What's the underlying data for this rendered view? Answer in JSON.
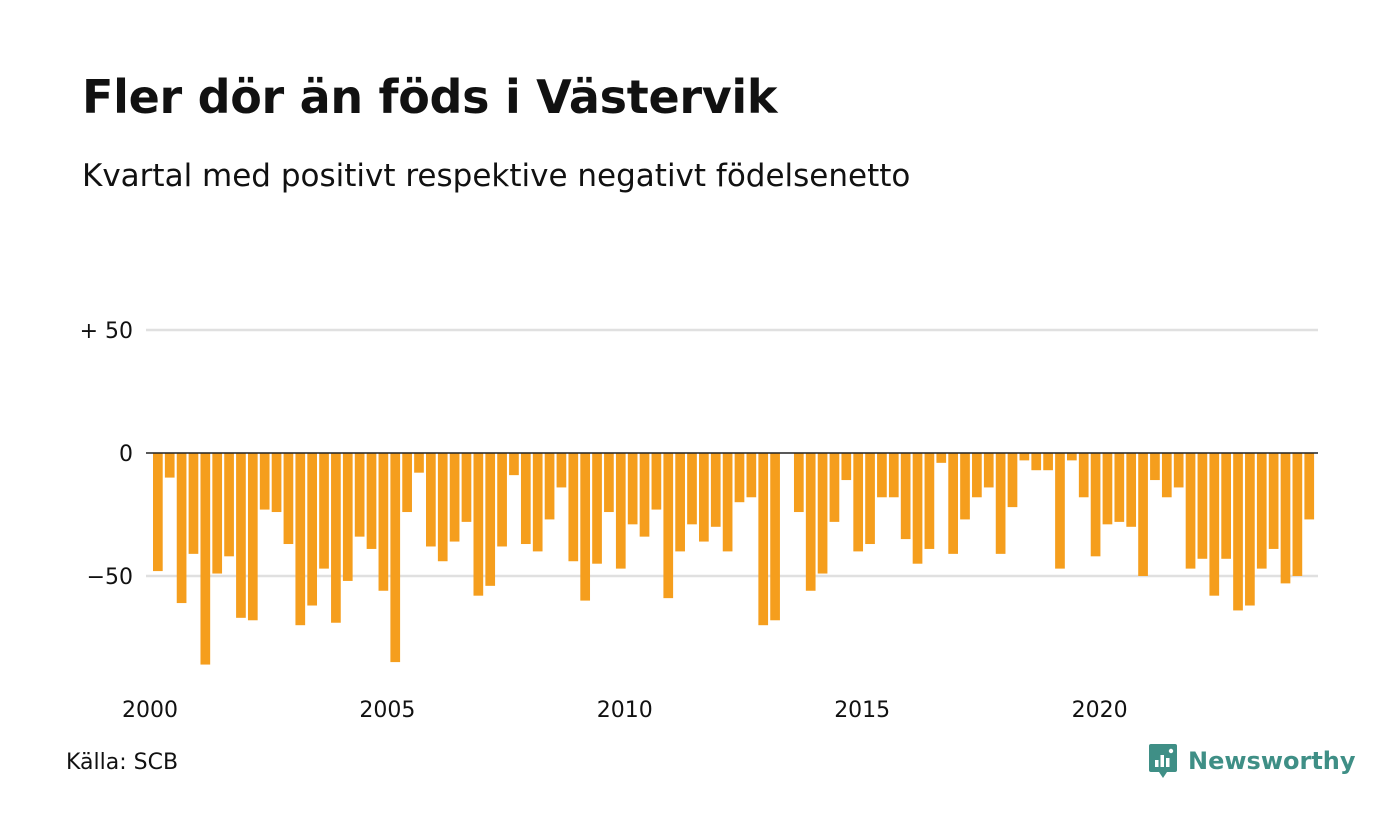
{
  "title": "Fler dör än föds i Västervik",
  "subtitle": "Kvartal med positivt respektive negativt födelsenetto",
  "source": "Källa: SCB",
  "brand": {
    "name": "Newsworthy",
    "icon": "newsworthy-logo-icon",
    "color": "#3f8f86"
  },
  "colors": {
    "bar": "#f59e1d",
    "grid": "#e0e0e0",
    "zero_line": "#222222"
  },
  "chart_data": {
    "type": "bar",
    "x_start": "2000 Q1",
    "y_ticks": [
      {
        "value": 50,
        "label": "+ 50"
      },
      {
        "value": 0,
        "label": "0"
      },
      {
        "value": -50,
        "label": "−50"
      }
    ],
    "x_ticks": [
      "2000",
      "2005",
      "2010",
      "2015",
      "2020"
    ],
    "ylim": [
      -90,
      50
    ],
    "values": [
      -48,
      -10,
      -61,
      -41,
      -86,
      -49,
      -42,
      -67,
      -68,
      -23,
      -24,
      -37,
      -70,
      -62,
      -47,
      -69,
      -52,
      -34,
      -39,
      -56,
      -85,
      -24,
      -8,
      -38,
      -44,
      -36,
      -28,
      -58,
      -54,
      -38,
      -9,
      -37,
      -40,
      -27,
      -14,
      -44,
      -60,
      -45,
      -24,
      -47,
      -29,
      -34,
      -23,
      -59,
      -40,
      -29,
      -36,
      -30,
      -40,
      -20,
      -18,
      -70,
      -68,
      0,
      -24,
      -56,
      -49,
      -28,
      -11,
      -40,
      -37,
      -18,
      -18,
      -35,
      -45,
      -39,
      -4,
      -41,
      -27,
      -18,
      -14,
      -41,
      -22,
      -3,
      -7,
      -7,
      -47,
      -3,
      -18,
      -42,
      -29,
      -28,
      -30,
      -50,
      -11,
      -18,
      -14,
      -47,
      -43,
      -58,
      -43,
      -64,
      -62,
      -47,
      -39,
      -53,
      -50,
      -27
    ],
    "grid": true
  }
}
